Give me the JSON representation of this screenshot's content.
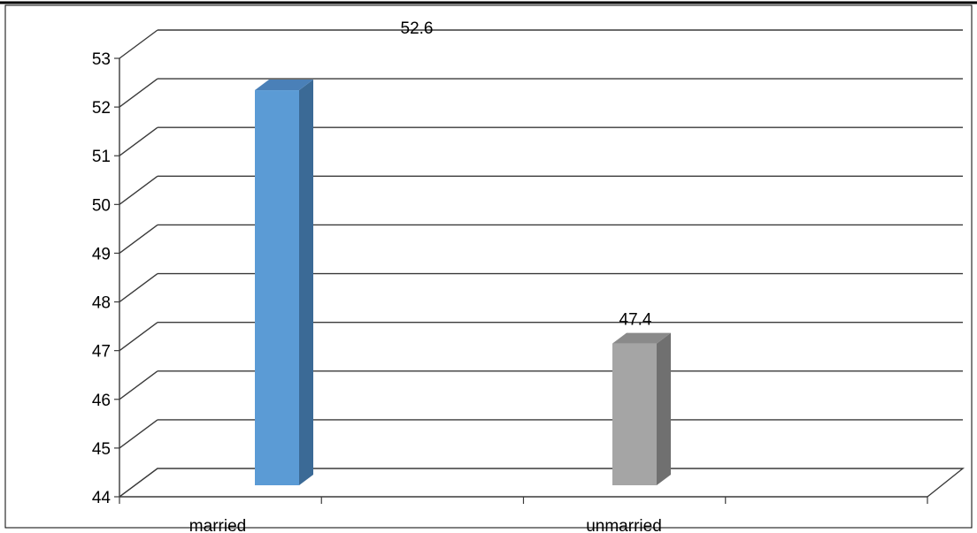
{
  "chart_data": {
    "type": "bar",
    "categories": [
      "married",
      "unmarried"
    ],
    "values": [
      52.6,
      47.4
    ],
    "data_labels": [
      "52.6",
      "47.4"
    ],
    "ylim": [
      44,
      53
    ],
    "yticks": [
      44,
      45,
      46,
      47,
      48,
      49,
      50,
      51,
      52,
      53
    ],
    "grid": true,
    "three_d": true,
    "legend": "none",
    "title": "",
    "xlabel": "",
    "ylabel": "",
    "colors": {
      "married": {
        "front": "#5b9bd5",
        "side": "#3b6a96",
        "top": "#4a80b8"
      },
      "unmarried": {
        "front": "#a5a5a5",
        "side": "#707070",
        "top": "#8a8a8a"
      },
      "grid": "#3a3a3a",
      "frame": "#000000"
    }
  }
}
